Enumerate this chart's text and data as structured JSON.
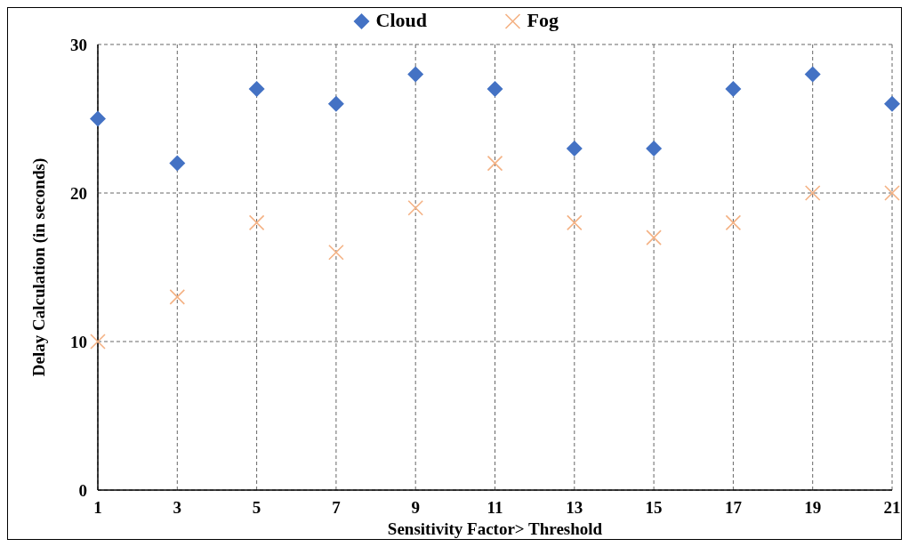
{
  "chart_data": {
    "type": "scatter",
    "xlabel": "Sensitivity Factor> Threshold",
    "ylabel": "Delay Calculation (in seconds)",
    "x": [
      1,
      3,
      5,
      7,
      9,
      11,
      13,
      15,
      17,
      19,
      21
    ],
    "series": [
      {
        "name": "Cloud",
        "color": "#4472c4",
        "marker": "diamond",
        "values": [
          25,
          22,
          27,
          26,
          28,
          27,
          23,
          23,
          27,
          28,
          26
        ]
      },
      {
        "name": "Fog",
        "color": "#f4b183",
        "marker": "cross",
        "values": [
          10,
          13,
          18,
          16,
          19,
          22,
          18,
          17,
          18,
          20,
          20
        ]
      }
    ],
    "xlim": [
      1,
      21
    ],
    "xticks": [
      1,
      3,
      5,
      7,
      9,
      11,
      13,
      15,
      17,
      19,
      21
    ],
    "ylim": [
      0,
      30
    ],
    "yticks": [
      0,
      10,
      20,
      30
    ],
    "grid": true,
    "legend": "top"
  }
}
